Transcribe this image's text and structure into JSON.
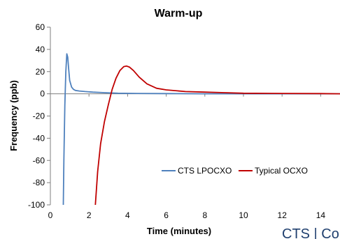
{
  "chart_data": {
    "type": "line",
    "title": "Warm-up",
    "xlabel": "Time (minutes)",
    "ylabel": "Frequency (ppb)",
    "xlim": [
      0,
      15
    ],
    "ylim": [
      -100,
      60
    ],
    "x_ticks": [
      0,
      2,
      4,
      6,
      8,
      10,
      12,
      14
    ],
    "y_ticks": [
      -100,
      -80,
      -60,
      -40,
      -20,
      0,
      20,
      40,
      60
    ],
    "grid": false,
    "legend_position": "bottom-right",
    "series": [
      {
        "name": "CTS LPOCXO",
        "color": "#4f81bd",
        "x": [
          0.67,
          0.7,
          0.75,
          0.8,
          0.85,
          0.9,
          0.95,
          1.0,
          1.1,
          1.2,
          1.3,
          1.5,
          1.8,
          2.2,
          2.8,
          3.5,
          4.5,
          6,
          8,
          10,
          12,
          15
        ],
        "y": [
          -100,
          -60,
          -10,
          20,
          36,
          33,
          22,
          12,
          6,
          4,
          3,
          2.5,
          2,
          1.5,
          1,
          0.5,
          0.3,
          0.2,
          0,
          0,
          0,
          0
        ]
      },
      {
        "name": "Typical OCXO",
        "color": "#c00000",
        "x": [
          2.33,
          2.45,
          2.6,
          2.8,
          3.0,
          3.2,
          3.4,
          3.6,
          3.8,
          3.95,
          4.1,
          4.3,
          4.6,
          5.0,
          5.5,
          6.0,
          7,
          8,
          9,
          10,
          12,
          14,
          15
        ],
        "y": [
          -100,
          -70,
          -45,
          -25,
          -10,
          4,
          14,
          21,
          24.5,
          25,
          24,
          21,
          15,
          9,
          5,
          3.5,
          2,
          1.5,
          1,
          0.5,
          0.3,
          0.2,
          0
        ]
      }
    ]
  },
  "watermark": {
    "text": "CTS | Co"
  }
}
